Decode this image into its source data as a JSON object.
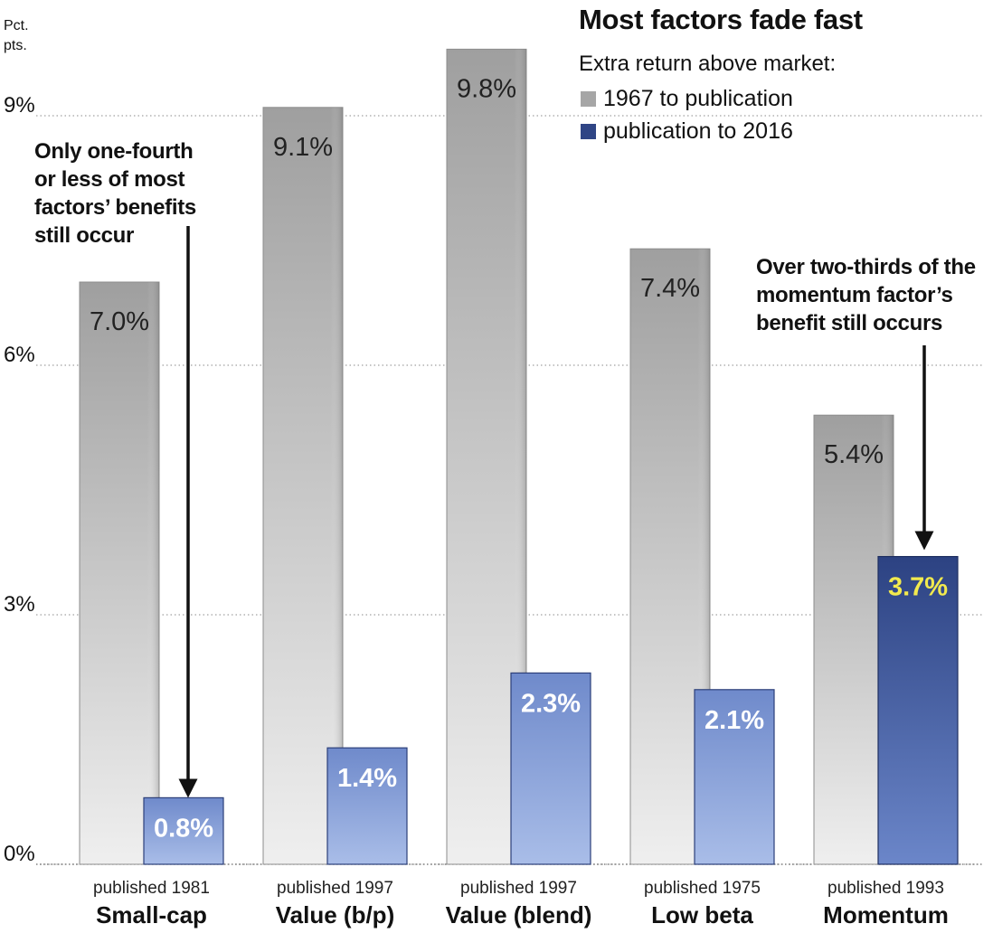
{
  "title": "Most factors fade fast",
  "subtitle": "Extra return above market:",
  "legend": [
    {
      "label": "1967 to publication",
      "color": "#a6a6a6"
    },
    {
      "label": "publication to 2016",
      "color": "#2f4585"
    }
  ],
  "y_unit_line1": "Pct.",
  "y_unit_line2": "pts.",
  "annotations": {
    "left": [
      "Only one-fourth",
      "or less of most",
      "factors’ benefits",
      "still occur"
    ],
    "right": [
      "Over two-thirds of the",
      "momentum factor’s",
      "benefit still occurs"
    ]
  },
  "colors": {
    "pre_publication": "#b8b8b8",
    "post_publication": "#7f9ad4",
    "highlight_bar": "#3d5699",
    "highlight_label": "#f2ea4e",
    "bar_label_light": "#ffffff",
    "bar_label_dark": "#222222"
  },
  "chart_data": {
    "type": "bar",
    "categories": [
      "Small-cap",
      "Value (b/p)",
      "Value (blend)",
      "Low beta",
      "Momentum"
    ],
    "category_sublabels": [
      "published 1981",
      "published 1997",
      "published 1997",
      "published 1975",
      "published 1993"
    ],
    "series": [
      {
        "name": "1967 to publication",
        "values": [
          7.0,
          9.1,
          9.8,
          7.4,
          5.4
        ],
        "labels": [
          "7.0%",
          "9.1%",
          "9.8%",
          "7.4%",
          "5.4%"
        ]
      },
      {
        "name": "publication to 2016",
        "values": [
          0.8,
          1.4,
          2.3,
          2.1,
          3.7
        ],
        "labels": [
          "0.8%",
          "1.4%",
          "2.3%",
          "2.1%",
          "3.7%"
        ]
      }
    ],
    "ylim": [
      0,
      10
    ],
    "yticks": [
      0,
      3,
      6,
      9
    ],
    "ytick_labels": [
      "0%",
      "3%",
      "6%",
      "9%"
    ],
    "grid": true,
    "highlight": {
      "series": 1,
      "category": 4
    }
  }
}
